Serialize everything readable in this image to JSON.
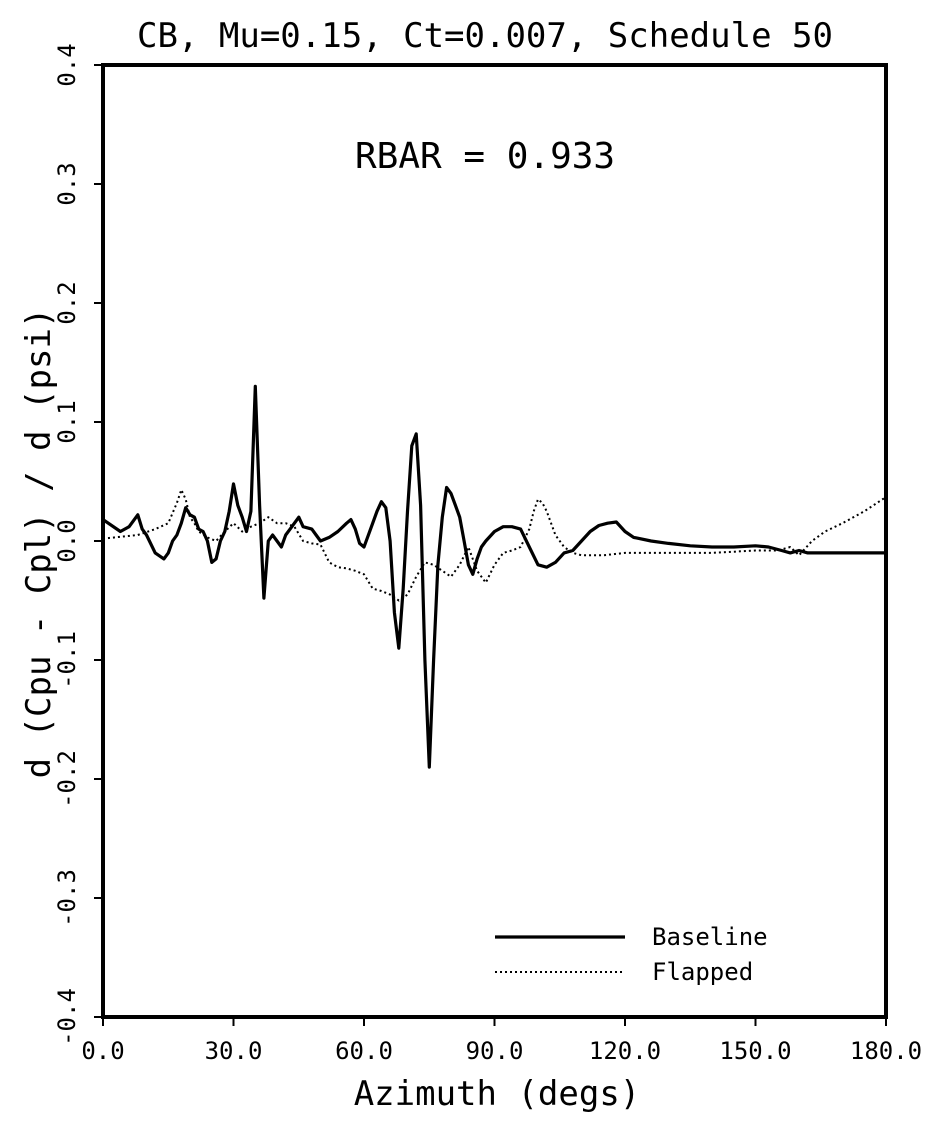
{
  "chart_data": {
    "type": "line",
    "title": "CB, Mu=0.15, Ct=0.007, Schedule 50",
    "annotation": "RBAR = 0.933",
    "xlabel": "Azimuth (degs)",
    "ylabel": "d (Cpu - Cpl) / d (psi)",
    "xlim": [
      0,
      180
    ],
    "ylim": [
      -0.4,
      0.4
    ],
    "x_ticks": [
      0,
      30,
      60,
      90,
      120,
      150,
      180
    ],
    "x_tick_labels": [
      "0.0",
      "30.0",
      "60.0",
      "90.0",
      "120.0",
      "150.0",
      "180.0"
    ],
    "y_ticks": [
      0.4,
      0.3,
      0.2,
      0.1,
      0.0,
      -0.1,
      -0.2,
      -0.3,
      -0.4
    ],
    "y_tick_labels": [
      "0.4",
      "0.3",
      "0.2",
      "0.1",
      "0.0",
      "-0.1",
      "-0.2",
      "-0.3",
      "-0.4"
    ],
    "grid": false,
    "legend_position": "bottom-right",
    "series": [
      {
        "name": "Baseline",
        "style": "solid",
        "color": "#000000",
        "x": [
          0,
          4,
          6,
          8,
          9,
          10,
          12,
          14,
          15,
          16,
          17,
          18,
          19,
          20,
          21,
          22,
          23,
          24,
          25,
          26,
          27,
          28,
          29,
          30,
          31,
          32,
          33,
          34,
          35,
          36,
          37,
          38,
          39,
          40,
          41,
          42,
          43,
          44,
          45,
          46,
          48,
          49,
          50,
          52,
          54,
          56,
          57,
          58,
          59,
          60,
          61,
          62,
          63,
          64,
          65,
          66,
          67,
          68,
          69,
          70,
          71,
          72,
          73,
          74,
          75,
          76,
          77,
          78,
          79,
          80,
          81,
          82,
          83,
          84,
          85,
          86,
          87,
          88,
          90,
          92,
          94,
          96,
          98,
          100,
          102,
          104,
          106,
          108,
          110,
          112,
          114,
          116,
          118,
          120,
          122,
          126,
          130,
          135,
          140,
          145,
          150,
          153,
          156,
          158,
          160,
          162,
          166,
          170,
          175,
          180
        ],
        "y": [
          0.018,
          0.008,
          0.012,
          0.022,
          0.01,
          0.005,
          -0.01,
          -0.015,
          -0.01,
          0.0,
          0.005,
          0.015,
          0.028,
          0.022,
          0.02,
          0.01,
          0.008,
          0.0,
          -0.018,
          -0.015,
          0.0,
          0.008,
          0.025,
          0.048,
          0.03,
          0.02,
          0.008,
          0.025,
          0.13,
          0.03,
          -0.048,
          0.0,
          0.005,
          0.0,
          -0.005,
          0.005,
          0.01,
          0.015,
          0.02,
          0.012,
          0.01,
          0.005,
          0.0,
          0.003,
          0.008,
          0.015,
          0.018,
          0.01,
          -0.002,
          -0.005,
          0.005,
          0.015,
          0.025,
          0.033,
          0.028,
          0.0,
          -0.06,
          -0.09,
          -0.04,
          0.025,
          0.08,
          0.09,
          0.03,
          -0.1,
          -0.19,
          -0.1,
          -0.02,
          0.02,
          0.045,
          0.04,
          0.03,
          0.02,
          0.0,
          -0.02,
          -0.028,
          -0.015,
          -0.005,
          0.0,
          0.008,
          0.012,
          0.012,
          0.01,
          -0.005,
          -0.02,
          -0.022,
          -0.018,
          -0.01,
          -0.008,
          0.0,
          0.008,
          0.013,
          0.015,
          0.016,
          0.008,
          0.003,
          0.0,
          -0.002,
          -0.004,
          -0.005,
          -0.005,
          -0.004,
          -0.005,
          -0.008,
          -0.01,
          -0.008,
          -0.01,
          -0.01,
          -0.01,
          -0.01,
          -0.01
        ]
      },
      {
        "name": "Flapped",
        "style": "dotted",
        "color": "#000000",
        "x": [
          0,
          8,
          12,
          15,
          17,
          18,
          19,
          20,
          21,
          22,
          24,
          26,
          28,
          30,
          32,
          34,
          36,
          38,
          40,
          42,
          44,
          46,
          48,
          50,
          52,
          54,
          56,
          58,
          60,
          62,
          64,
          66,
          68,
          70,
          72,
          74,
          76,
          78,
          80,
          82,
          84,
          86,
          88,
          90,
          92,
          94,
          96,
          98,
          99,
          100,
          101,
          102,
          104,
          106,
          108,
          110,
          115,
          120,
          125,
          130,
          140,
          150,
          155,
          158,
          160,
          163,
          166,
          170,
          175,
          180
        ],
        "y": [
          0.002,
          0.005,
          0.01,
          0.015,
          0.032,
          0.043,
          0.035,
          0.02,
          0.015,
          0.008,
          0.003,
          0.0,
          0.008,
          0.015,
          0.008,
          0.012,
          0.015,
          0.02,
          0.015,
          0.015,
          0.012,
          0.0,
          -0.002,
          -0.003,
          -0.018,
          -0.022,
          -0.023,
          -0.025,
          -0.028,
          -0.04,
          -0.042,
          -0.045,
          -0.05,
          -0.045,
          -0.03,
          -0.018,
          -0.02,
          -0.025,
          -0.03,
          -0.02,
          -0.005,
          -0.025,
          -0.035,
          -0.02,
          -0.01,
          -0.008,
          -0.005,
          0.01,
          0.025,
          0.035,
          0.032,
          0.025,
          0.005,
          -0.005,
          -0.01,
          -0.012,
          -0.012,
          -0.01,
          -0.01,
          -0.01,
          -0.01,
          -0.008,
          -0.008,
          -0.005,
          -0.012,
          0.0,
          0.008,
          0.015,
          0.025,
          0.037
        ]
      }
    ]
  }
}
